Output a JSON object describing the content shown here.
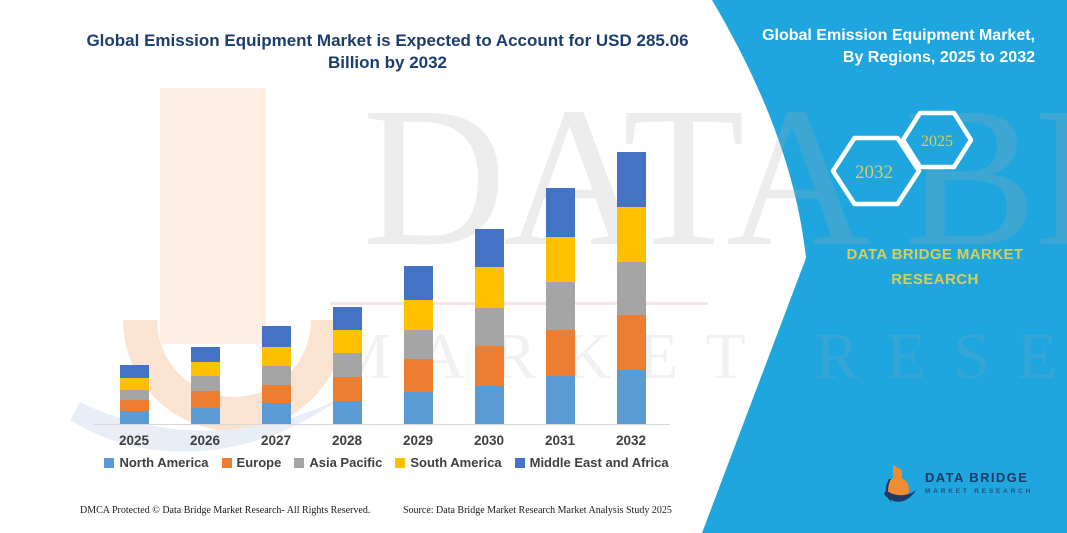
{
  "header": {
    "title_line1": "Global Emission Equipment Market is Expected to Account for USD 285.06",
    "title_line2": "Billion by 2032"
  },
  "side_panel": {
    "heading_line1": "Global Emission Equipment Market,",
    "heading_line2": "By Regions, 2025 to 2032",
    "hexagons": {
      "large": "2032",
      "small": "2025"
    },
    "brand_line1": "DATA BRIDGE MARKET",
    "brand_line2": "RESEARCH",
    "colors": {
      "background": "#1FA6DE",
      "accent_yellow": "#D6CE58"
    }
  },
  "logo": {
    "title": "DATA BRIDGE",
    "subtitle": "MARKET RESEARCH",
    "orange": "#EF8B33",
    "navy": "#1E3A66"
  },
  "watermark": {
    "line1": "DATA BRIDGE",
    "line2": "MARKET RESEARCH"
  },
  "footer": {
    "dmca": "DMCA Protected © Data Bridge Market Research-  All Rights Reserved.",
    "source": "Source: Data Bridge Market Research  Market Analysis Study 2025"
  },
  "chart_data": {
    "type": "bar",
    "stacked": true,
    "title": "Global Emission Equipment Market is Expected to Account for USD 285.06 Billion by 2032",
    "unit": "USD Billion",
    "categories": [
      "2025",
      "2026",
      "2027",
      "2028",
      "2029",
      "2030",
      "2031",
      "2032"
    ],
    "series": [
      {
        "name": "North America",
        "color": "#5B9BD5",
        "values": [
          13.3,
          16.8,
          22.0,
          24.4,
          33.9,
          40.1,
          50.6,
          56.6
        ]
      },
      {
        "name": "Europe",
        "color": "#ED7D31",
        "values": [
          12.2,
          17.4,
          18.9,
          25.2,
          34.3,
          41.9,
          48.2,
          57.6
        ]
      },
      {
        "name": "Asia Pacific",
        "color": "#A5A5A5",
        "values": [
          10.5,
          16.0,
          20.2,
          24.4,
          30.7,
          39.5,
          49.6,
          55.5
        ]
      },
      {
        "name": "South America",
        "color": "#FFC000",
        "values": [
          12.3,
          14.7,
          19.2,
          24.4,
          31.1,
          42.6,
          47.9,
          57.6
        ]
      },
      {
        "name": "Middle East and Africa",
        "color": "#4472C4",
        "values": [
          13.3,
          15.5,
          22.7,
          24.4,
          36.0,
          40.2,
          50.6,
          57.76
        ]
      }
    ],
    "totals": [
      61.6,
      80.4,
      103.0,
      122.8,
      166.0,
      204.3,
      246.9,
      285.06
    ],
    "xlabel": "",
    "ylabel": "",
    "value_axis_visible": false,
    "grid": false,
    "legend_position": "bottom"
  }
}
